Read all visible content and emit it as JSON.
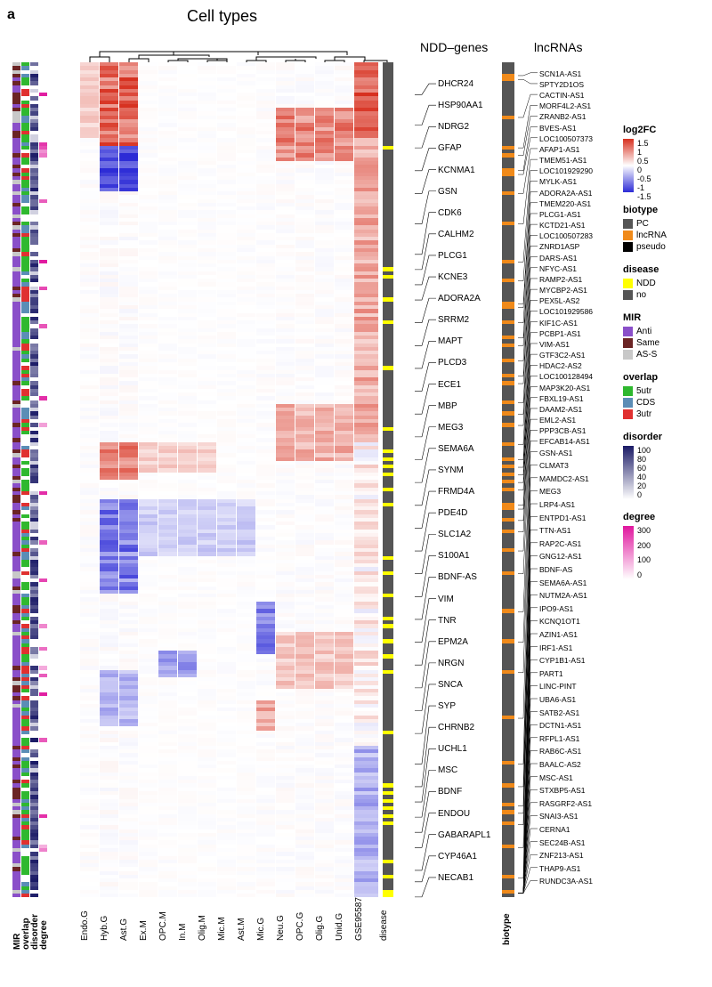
{
  "panel_label": "a",
  "titles": {
    "celltypes": "Cell types",
    "ndd": "NDD–genes",
    "lnc": "lncRNAs"
  },
  "n_rows": 220,
  "colors": {
    "log2fc_max": "#d7301f",
    "log2fc_mid": "#ffffff",
    "log2fc_min": "#2c2bd6",
    "biotype_PC": "#555555",
    "biotype_lnc": "#f08a1a",
    "biotype_pseudo": "#000000",
    "disease_NDD": "#ffff00",
    "disease_no": "#555555",
    "mir_anti": "#8a4fc9",
    "mir_same": "#6b2424",
    "mir_ass": "#c8c8c8",
    "overlap_5utr": "#2fb82f",
    "overlap_cds": "#5b8db6",
    "overlap_3utr": "#e03030",
    "disorder0": "#ffffff",
    "disorder100": "#1a1a66",
    "degree0": "#ffffff",
    "degree300": "#e0169e"
  },
  "ann_cols": [
    "MIR",
    "overlap",
    "disorder",
    "degree"
  ],
  "hm_cols": [
    "Endo.G",
    "Hyb.G",
    "Ast.G",
    "Ex.M",
    "OPC.M",
    "In.M",
    "Olig.M",
    "Mic.M",
    "Ast.M",
    "Mic.G",
    "Neu.G",
    "OPC.G",
    "Olig.G",
    "Unid.G",
    "GSE95587"
  ],
  "ndd_genes": [
    {
      "name": "DHCR24",
      "row": 8
    },
    {
      "name": "HSP90AA1",
      "row": 16
    },
    {
      "name": "NDRG2",
      "row": 22
    },
    {
      "name": "GFAP",
      "row": 28
    },
    {
      "name": "KCNMA1",
      "row": 34
    },
    {
      "name": "GSN",
      "row": 42
    },
    {
      "name": "CDK6",
      "row": 50
    },
    {
      "name": "CALHM2",
      "row": 54
    },
    {
      "name": "PLCG1",
      "row": 58
    },
    {
      "name": "KCNE3",
      "row": 62
    },
    {
      "name": "ADORA2A",
      "row": 68
    },
    {
      "name": "SRRM2",
      "row": 74
    },
    {
      "name": "MAPT",
      "row": 80
    },
    {
      "name": "PLCD3",
      "row": 86
    },
    {
      "name": "ECE1",
      "row": 92
    },
    {
      "name": "MBP",
      "row": 98
    },
    {
      "name": "MEG3",
      "row": 104
    },
    {
      "name": "SEMA6A",
      "row": 110
    },
    {
      "name": "SYNM",
      "row": 116
    },
    {
      "name": "FRMD4A",
      "row": 122
    },
    {
      "name": "PDE4D",
      "row": 128
    },
    {
      "name": "SLC1A2",
      "row": 134
    },
    {
      "name": "S100A1",
      "row": 140
    },
    {
      "name": "BDNF-AS",
      "row": 146
    },
    {
      "name": "VIM",
      "row": 152
    },
    {
      "name": "TNR",
      "row": 158
    },
    {
      "name": "EPM2A",
      "row": 164
    },
    {
      "name": "NRGN",
      "row": 170
    },
    {
      "name": "SNCA",
      "row": 176
    },
    {
      "name": "SYP",
      "row": 184
    },
    {
      "name": "CHRNB2",
      "row": 190
    },
    {
      "name": "UCHL1",
      "row": 194
    },
    {
      "name": "MSC",
      "row": 198
    },
    {
      "name": "BDNF",
      "row": 202
    },
    {
      "name": "ENDOU",
      "row": 206
    },
    {
      "name": "GABARAPL1",
      "row": 212
    },
    {
      "name": "CYP46A1",
      "row": 215
    },
    {
      "name": "NECAB1",
      "row": 219
    }
  ],
  "lnc_names": [
    "SCN1A-AS1",
    "SPTY2D1OS",
    "CACTIN-AS1",
    "MORF4L2-AS1",
    "ZRANB2-AS1",
    "BVES-AS1",
    "LOC100507373",
    "AFAP1-AS1",
    "TMEM51-AS1",
    "LOC101929290",
    "MYLK-AS1",
    "ADORA2A-AS1",
    "TMEM220-AS1",
    "PLCG1-AS1",
    "KCTD21-AS1",
    "LOC100507283",
    "ZNRD1ASP",
    "DARS-AS1",
    "NFYC-AS1",
    "RAMP2-AS1",
    "MYCBP2-AS1",
    "PEX5L-AS2",
    "LOC101929586",
    "KIF1C-AS1",
    "PCBP1-AS1",
    "VIM-AS1",
    "GTF3C2-AS1",
    "HDAC2-AS2",
    "LOC100128494",
    "MAP3K20-AS1",
    "FBXL19-AS1",
    "DAAM2-AS1",
    "EML2-AS1",
    "PPP3CB-AS1",
    "EFCAB14-AS1",
    "GSN-AS1",
    "CLMAT3",
    "MAMDC2-AS1",
    "MEG3",
    "LRP4-AS1",
    "ENTPD1-AS1",
    "TTN-AS1",
    "RAP2C-AS1",
    "GNG12-AS1",
    "BDNF-AS",
    "SEMA6A-AS1",
    "NUTM2A-AS1",
    "IPO9-AS1",
    "KCNQ1OT1",
    "AZIN1-AS1",
    "IRF1-AS1",
    "CYP1B1-AS1",
    "PART1",
    "LINC-PINT",
    "UBA6-AS1",
    "SATB2-AS1",
    "DCTN1-AS1",
    "RFPL1-AS1",
    "RAB6C-AS1",
    "BAALC-AS2",
    "MSC-AS1",
    "STXBP5-AS1",
    "RASGRF2-AS1",
    "SNAI3-AS1",
    "CERNA1",
    "SEC24B-AS1",
    "ZNF213-AS1",
    "THAP9-AS1",
    "RUNDC3A-AS1"
  ],
  "lnc_biotype_rows": [
    3,
    4,
    14,
    22,
    24,
    28,
    29,
    34,
    42,
    52,
    57,
    63,
    64,
    68,
    72,
    74,
    78,
    82,
    84,
    89,
    92,
    95,
    100,
    104,
    106,
    108,
    110,
    112,
    116,
    117,
    120,
    123,
    128,
    134,
    144,
    152,
    160,
    172,
    184,
    190,
    195,
    197,
    200,
    206,
    214,
    218
  ],
  "disease_rows": [
    22,
    54,
    56,
    62,
    68,
    80,
    96,
    102,
    104,
    106,
    108,
    112,
    116,
    130,
    134,
    140,
    146,
    148,
    152,
    156,
    160,
    176,
    190,
    192,
    194,
    196,
    198,
    200,
    210,
    214,
    218,
    219
  ],
  "legends": {
    "log2fc": {
      "title": "log2FC",
      "ticks": [
        "1.5",
        "1",
        "0.5",
        "0",
        "-0.5",
        "-1",
        "-1.5"
      ]
    },
    "biotype": {
      "title": "biotype",
      "items": [
        [
          "PC",
          "#555555"
        ],
        [
          "lncRNA",
          "#f08a1a"
        ],
        [
          "pseudo",
          "#000000"
        ]
      ]
    },
    "disease": {
      "title": "disease",
      "items": [
        [
          "NDD",
          "#ffff00"
        ],
        [
          "no",
          "#555555"
        ]
      ]
    },
    "mir": {
      "title": "MIR",
      "items": [
        [
          "Anti",
          "#8a4fc9"
        ],
        [
          "Same",
          "#6b2424"
        ],
        [
          "AS-S",
          "#c8c8c8"
        ]
      ]
    },
    "overlap": {
      "title": "overlap",
      "items": [
        [
          "5utr",
          "#2fb82f"
        ],
        [
          "CDS",
          "#5b8db6"
        ],
        [
          "3utr",
          "#e03030"
        ]
      ]
    },
    "disorder": {
      "title": "disorder",
      "ticks": [
        "100",
        "80",
        "60",
        "40",
        "20",
        "0"
      ]
    },
    "degree": {
      "title": "degree",
      "ticks": [
        "300",
        "200",
        "100",
        "0"
      ]
    }
  },
  "xlab_biotype": "biotype",
  "hm_pattern_comment": "approximated: top rows red dominant in Ast.G/Hyb.G & GSE95587; middle rows light; scattered blue in Hyb.G/Ast.G rows 24-34 and 115-130; bottom rows pale purple in GSE95587"
}
